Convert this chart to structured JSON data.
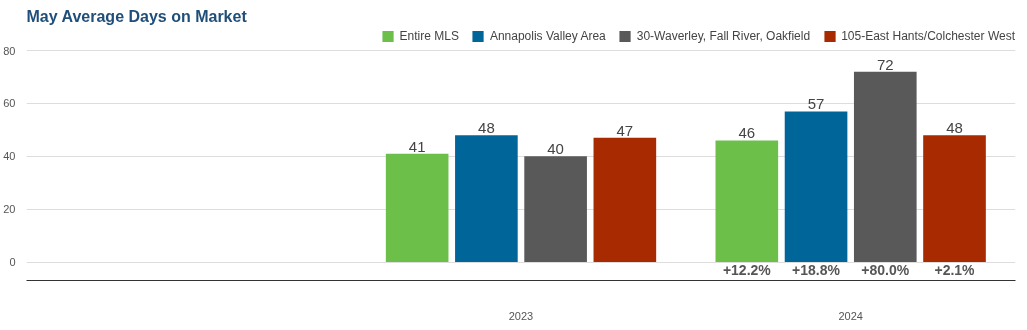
{
  "chart_data": {
    "type": "bar",
    "title": "May Average Days on Market",
    "categories": [
      null,
      "2023",
      "2024"
    ],
    "series": [
      {
        "name": "Entire MLS",
        "color": "#6cc04a",
        "values": [
          null,
          41,
          46
        ]
      },
      {
        "name": "Annapolis Valley Area",
        "color": "#006699",
        "values": [
          null,
          48,
          57
        ]
      },
      {
        "name": "30-Waverley, Fall River, Oakfield",
        "color": "#595959",
        "values": [
          null,
          40,
          72
        ]
      },
      {
        "name": "105-East Hants/Colchester West",
        "color": "#a82a00",
        "values": [
          null,
          47,
          48
        ]
      }
    ],
    "ylim": [
      -7,
      88
    ],
    "yticks": [
      0,
      20,
      40,
      60,
      80
    ],
    "grid": "y",
    "legend": "top right",
    "data_labels": true,
    "annotations": [
      "+12.2%",
      "+18.8%",
      "+80.0%",
      "+2.1%"
    ]
  }
}
